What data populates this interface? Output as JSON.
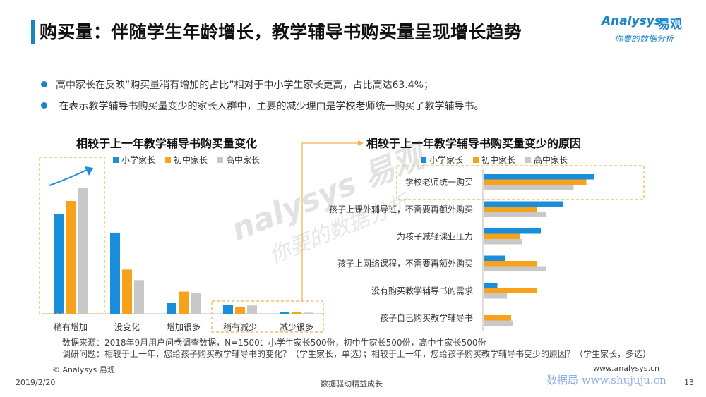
{
  "header": {
    "title": "购买量：伴随学生年龄增长，教学辅导书购买量呈现增长趋势",
    "logo_en": "Analysys",
    "logo_cn": "易观",
    "logo_slogan": "你要的数据分析"
  },
  "bullets": [
    "高中家长在反映“购买量稍有增加的占比”相对于中小学生家长更高，占比高达63.4%；",
    " 在表示教学辅导书购买量变少的家长人群中，主要的减少理由是学校老师统一购买了教学辅导书。"
  ],
  "legend": [
    "小学家长",
    "初中家长",
    "高中家长"
  ],
  "colors": {
    "primary": "#1a84c7",
    "elementary": "#1a8ddb",
    "middle": "#f7a21b",
    "high": "#c8c8c8",
    "highlight_border": "#f0b24a"
  },
  "chart_data": [
    {
      "type": "bar",
      "title": "相较于上一年教学辅导书购买量变化",
      "categories": [
        "稍有增加",
        "没变化",
        "增加很多",
        "稍有减少",
        "减少很多"
      ],
      "series": [
        {
          "name": "小学家长",
          "values": [
            50.3,
            41.0,
            5.5,
            4.5,
            0.8
          ]
        },
        {
          "name": "初中家长",
          "values": [
            57.0,
            22.3,
            11.2,
            3.6,
            0.8
          ]
        },
        {
          "name": "高中家长",
          "values": [
            63.4,
            17.0,
            10.6,
            4.2,
            0.6
          ]
        }
      ],
      "ylim": [
        0,
        70
      ],
      "grid": false,
      "legend_position": "top"
    },
    {
      "type": "bar",
      "orientation": "horizontal",
      "title": "相较于上一年教学辅导书购买量变少的原因",
      "categories": [
        "学校老师统一购买",
        "孩子上课外辅导班，不需要再额外购买",
        "为孩子减轻课业压力",
        "孩子上网络课程，不需要再额外购买",
        "没有购买教学辅导书的需求",
        "孩子自己购买教学辅导书"
      ],
      "series": [
        {
          "name": "小学家长",
          "values": [
            52.0,
            37.5,
            27.0,
            10.0,
            6.5,
            0.0
          ]
        },
        {
          "name": "初中家长",
          "values": [
            48.5,
            25.0,
            17.0,
            25.0,
            25.0,
            13.0
          ]
        },
        {
          "name": "高中家长",
          "values": [
            42.5,
            29.5,
            18.0,
            29.5,
            11.0,
            14.0
          ]
        }
      ],
      "xlim": [
        0,
        80
      ],
      "grid": false,
      "legend_position": "top"
    }
  ],
  "notes": {
    "source": "数据来源：2018年9月用户问卷调查数据，N=1500：小学生家长500份，初中生家长500份，高中生家长500份",
    "question": "调研问题：相较于上一年，您给孩子购买教学辅导书的变化？（学生家长，单选）；相较于上一年，您给孩子购买教学辅导书变少的原因？（学生家长，多选）"
  },
  "footer": {
    "copyright": "© Analysys 易观",
    "website": "www.analysys.cn",
    "date": "2019/2/20",
    "center": "数据驱动精益成长",
    "page": "13",
    "watermark_site": "数据局 www.shujuju.cn"
  }
}
